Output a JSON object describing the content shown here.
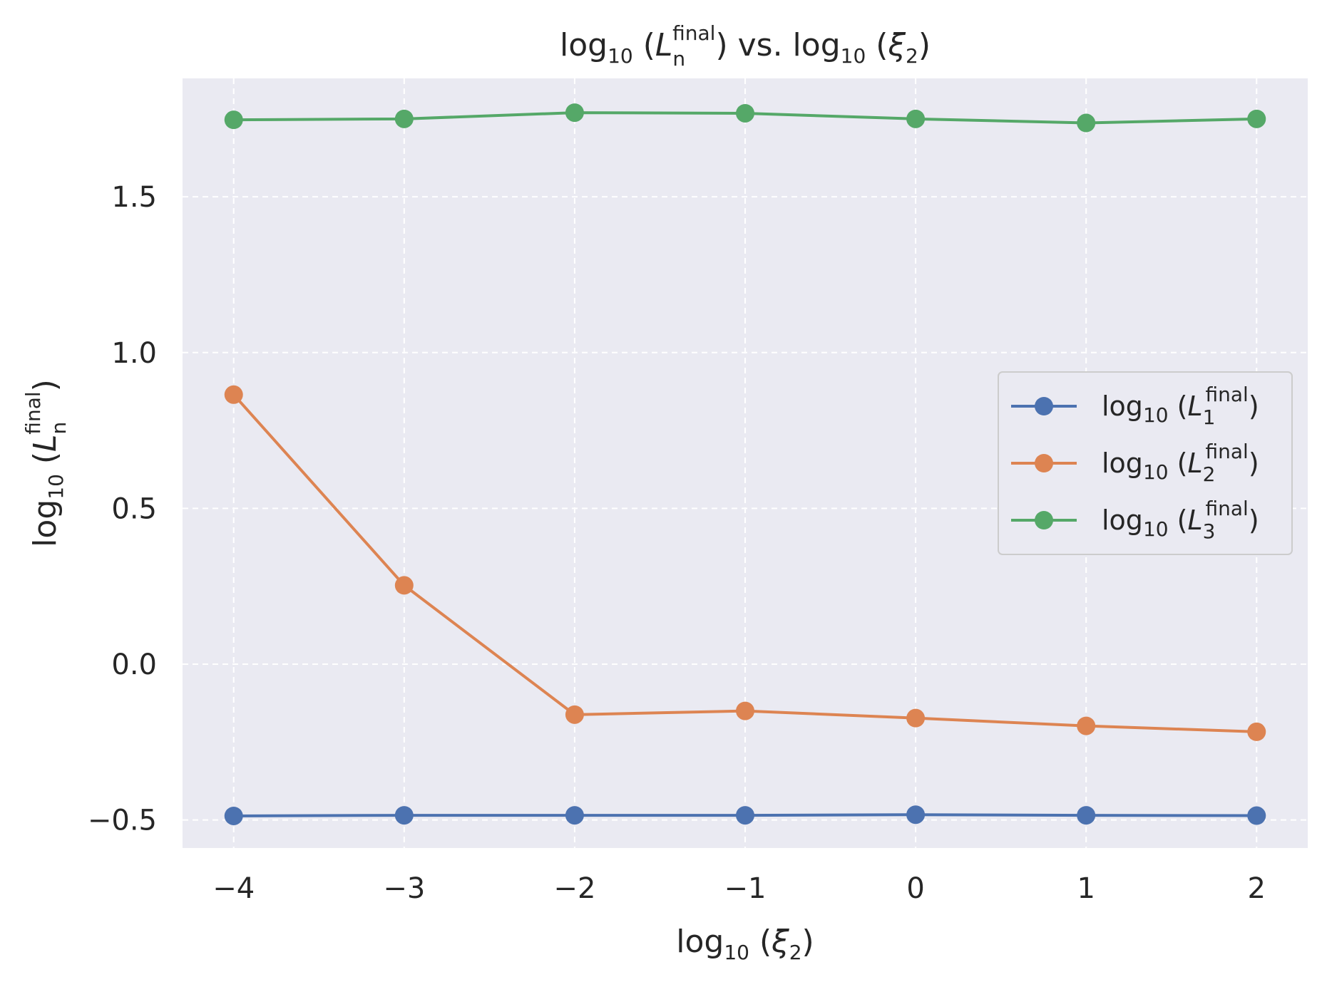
{
  "chart_data": {
    "type": "line",
    "title": {
      "pre": "log",
      "sub10": "10",
      "open": " (",
      "var": "L",
      "sub": "n",
      "sup": "final",
      "close": ") vs. log",
      "sub10b": "10",
      "open2": " (",
      "var2": "ξ",
      "sub2": "2",
      "close2": ")"
    },
    "xlabel": {
      "pre": "log",
      "sub10": "10",
      "open": " (",
      "var": "ξ",
      "sub": "2",
      "close": ")"
    },
    "ylabel": {
      "pre": "log",
      "sub10": "10",
      "open": " (",
      "var": "L",
      "sub": "n",
      "sup": "final",
      "close": ")"
    },
    "x": [
      -4,
      -3,
      -2,
      -1,
      0,
      1,
      2
    ],
    "x_tick_labels": [
      "−4",
      "−3",
      "−2",
      "−1",
      "0",
      "1",
      "2"
    ],
    "y_ticks": [
      -0.5,
      0.0,
      0.5,
      1.0,
      1.5
    ],
    "y_tick_labels": [
      "−0.5",
      "0.0",
      "0.5",
      "1.0",
      "1.5"
    ],
    "xlim": [
      -4.3,
      2.3
    ],
    "ylim": [
      -0.59,
      1.88
    ],
    "grid": true,
    "grid_style": "dashed",
    "background": "#eaeaf2",
    "legend_placement": "center-right",
    "series": [
      {
        "legend": {
          "pre": "log",
          "sub10": "10",
          "open": " (",
          "var": "L",
          "sub": "1",
          "sup": "final",
          "close": ")"
        },
        "color": "#4c72b0",
        "values": [
          -0.487,
          -0.485,
          -0.485,
          -0.485,
          -0.483,
          -0.485,
          -0.486
        ]
      },
      {
        "legend": {
          "pre": "log",
          "sub10": "10",
          "open": " (",
          "var": "L",
          "sub": "2",
          "sup": "final",
          "close": ")"
        },
        "color": "#dd8452",
        "values": [
          0.865,
          0.253,
          -0.162,
          -0.15,
          -0.173,
          -0.198,
          -0.217
        ]
      },
      {
        "legend": {
          "pre": "log",
          "sub10": "10",
          "open": " (",
          "var": "L",
          "sub": "3",
          "sup": "final",
          "close": ")"
        },
        "color": "#55a868",
        "values": [
          1.747,
          1.75,
          1.77,
          1.768,
          1.75,
          1.737,
          1.75
        ]
      }
    ]
  }
}
